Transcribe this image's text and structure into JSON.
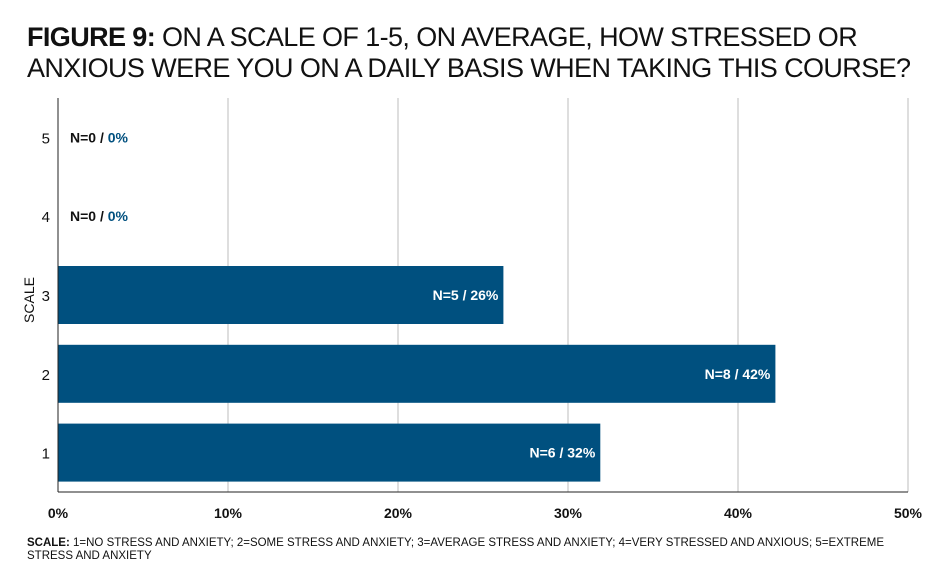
{
  "title_lead": "FIGURE 9:",
  "title_rest": "ON A SCALE OF 1-5, ON AVERAGE, HOW STRESSED OR ANXIOUS WERE YOU ON A DAILY BASIS WHEN TAKING THIS COURSE?",
  "footnote_lead": "SCALE:",
  "footnote_rest": "1=NO STRESS AND ANXIETY; 2=SOME STRESS AND ANXIETY; 3=AVERAGE STRESS AND ANXIETY; 4=VERY STRESSED AND ANXIOUS; 5=EXTREME STRESS AND ANXIETY",
  "colors": {
    "bar": "#00507f",
    "percent_text": "#00507f",
    "grid": "#bdbdbd",
    "axis": "#222222"
  },
  "chart_data": {
    "type": "bar",
    "orientation": "horizontal",
    "title": "ON A SCALE OF 1-5, ON AVERAGE, HOW STRESSED OR ANXIOUS WERE YOU ON A DAILY BASIS WHEN TAKING THIS COURSE?",
    "ylabel": "SCALE",
    "xlabel": "",
    "xlim": [
      0,
      50
    ],
    "x_ticks": [
      0,
      10,
      20,
      30,
      40,
      50
    ],
    "x_tick_labels": [
      "0%",
      "10%",
      "20%",
      "30%",
      "40%",
      "50%"
    ],
    "grid": true,
    "categories": [
      "5",
      "4",
      "3",
      "2",
      "1"
    ],
    "values": [
      0,
      0,
      26,
      42,
      32
    ],
    "plot_values": [
      0,
      0,
      26.2,
      42.2,
      31.9
    ],
    "counts": [
      0,
      0,
      5,
      8,
      6
    ],
    "data_labels": [
      {
        "n": "N=0",
        "sep": " / ",
        "pct": "0%"
      },
      {
        "n": "N=0",
        "sep": " / ",
        "pct": "0%"
      },
      {
        "n": "N=5",
        "sep": " / ",
        "pct": "26%"
      },
      {
        "n": "N=8",
        "sep": " / ",
        "pct": "42%"
      },
      {
        "n": "N=6",
        "sep": " / ",
        "pct": "32%"
      }
    ]
  }
}
